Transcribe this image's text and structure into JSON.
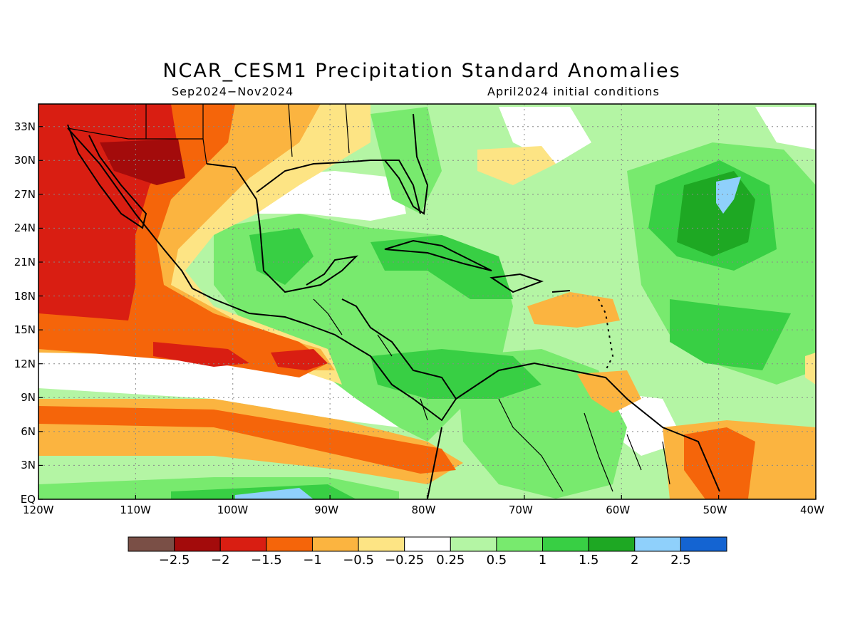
{
  "title": "NCAR_CESM1 Precipitation Standard Anomalies",
  "subtitle_left": "Sep2024−Nov2024",
  "subtitle_right": "April2024 initial conditions",
  "map": {
    "lon_range": [
      -120,
      -40
    ],
    "lat_range": [
      0,
      35
    ],
    "lat_labels": [
      {
        "lat": 33,
        "text": "33N"
      },
      {
        "lat": 30,
        "text": "30N"
      },
      {
        "lat": 27,
        "text": "27N"
      },
      {
        "lat": 24,
        "text": "24N"
      },
      {
        "lat": 21,
        "text": "21N"
      },
      {
        "lat": 18,
        "text": "18N"
      },
      {
        "lat": 15,
        "text": "15N"
      },
      {
        "lat": 12,
        "text": "12N"
      },
      {
        "lat": 9,
        "text": "9N"
      },
      {
        "lat": 6,
        "text": "6N"
      },
      {
        "lat": 3,
        "text": "3N"
      },
      {
        "lat": 0,
        "text": "EQ"
      }
    ],
    "lon_labels": [
      {
        "lon": -120,
        "text": "120W"
      },
      {
        "lon": -110,
        "text": "110W"
      },
      {
        "lon": -100,
        "text": "100W"
      },
      {
        "lon": -90,
        "text": "90W"
      },
      {
        "lon": -80,
        "text": "80W"
      },
      {
        "lon": -70,
        "text": "70W"
      },
      {
        "lon": -60,
        "text": "60W"
      },
      {
        "lon": -50,
        "text": "50W"
      },
      {
        "lon": -40,
        "text": "40W"
      }
    ],
    "grid": "dotted"
  },
  "colorbar": {
    "colors": [
      "#7a4f46",
      "#a30b0b",
      "#d91e12",
      "#f5650a",
      "#fbb440",
      "#fde484",
      "#ffffff",
      "#b4f5a4",
      "#78ea6e",
      "#38cf44",
      "#1ea823",
      "#8fd0fb",
      "#1464d2"
    ],
    "labels": [
      "−2.5",
      "−2",
      "−1.5",
      "−1",
      "−0.5",
      "−0.25",
      "0.25",
      "0.5",
      "1",
      "1.5",
      "2",
      "2.5"
    ]
  }
}
